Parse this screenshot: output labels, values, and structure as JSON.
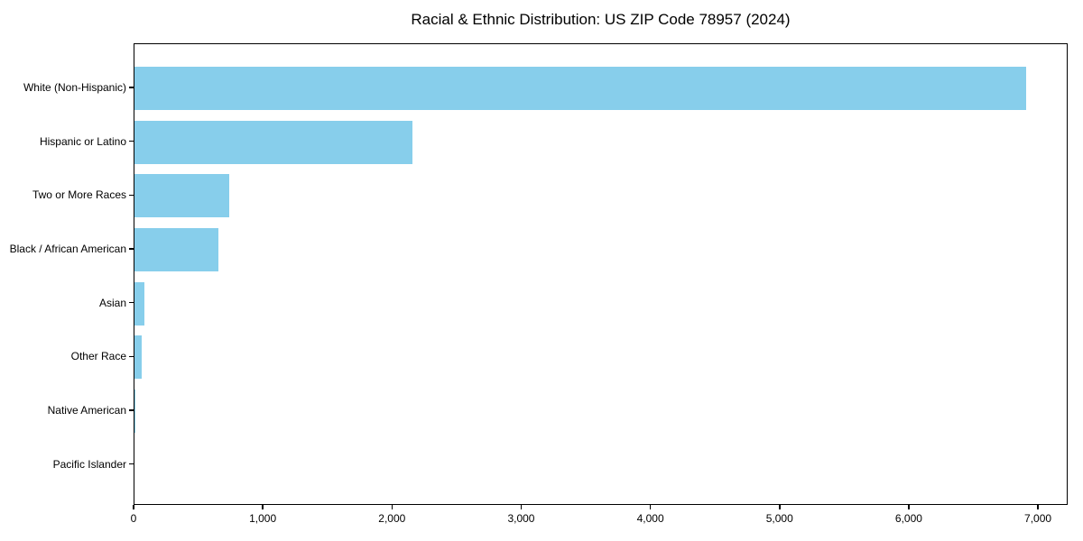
{
  "chart_data": {
    "type": "bar",
    "orientation": "horizontal",
    "title": "Racial & Ethnic Distribution: US ZIP Code 78957 (2024)",
    "categories": [
      "White (Non-Hispanic)",
      "Hispanic or Latino",
      "Two or More Races",
      "Black / African American",
      "Asian",
      "Other Race",
      "Native American",
      "Pacific Islander"
    ],
    "values": [
      6900,
      2150,
      730,
      650,
      75,
      55,
      7,
      0
    ],
    "xlabel": "",
    "ylabel": "",
    "xlim": [
      0,
      7230
    ],
    "xticks": [
      0,
      1000,
      2000,
      3000,
      4000,
      5000,
      6000,
      7000
    ],
    "xtick_labels": [
      "0",
      "1,000",
      "2,000",
      "3,000",
      "4,000",
      "5,000",
      "6,000",
      "7,000"
    ],
    "bar_color": "#87CEEB",
    "background_color": "#ffffff",
    "axis_color": "#000000",
    "grid": false,
    "legend": null
  }
}
